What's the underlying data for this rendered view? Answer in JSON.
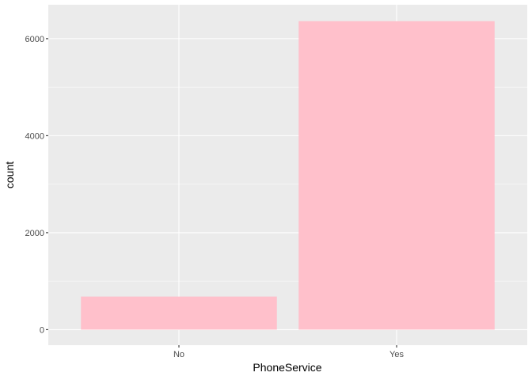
{
  "chart_data": {
    "type": "bar",
    "categories": [
      "No",
      "Yes"
    ],
    "values": [
      682,
      6361
    ],
    "title": "",
    "xlabel": "PhoneService",
    "ylabel": "count",
    "ylim": [
      -320,
      6700
    ],
    "yticks": [
      0,
      2000,
      4000,
      6000
    ],
    "grid": true,
    "legend": "none",
    "bar_color": "#FFC0CB",
    "panel_background": "#EBEBEB",
    "grid_color": "#FFFFFF"
  }
}
